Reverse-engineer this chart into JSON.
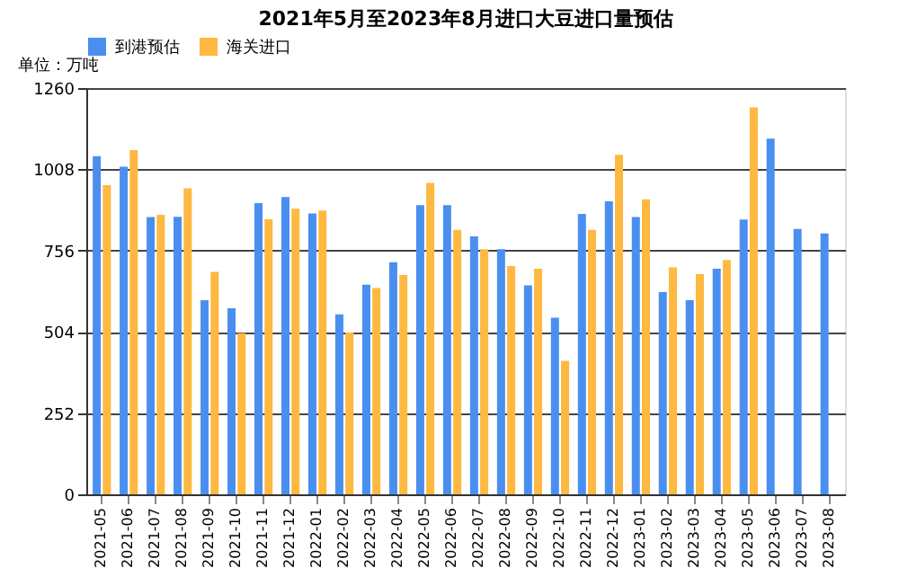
{
  "chart_data": {
    "type": "bar",
    "title": "2021年5月至2023年8月进口大豆进口量预估",
    "ylabel": "单位：万吨",
    "categories": [
      "2021-05",
      "2021-06",
      "2021-07",
      "2021-08",
      "2021-09",
      "2021-10",
      "2021-11",
      "2021-12",
      "2022-01",
      "2022-02",
      "2022-03",
      "2022-04",
      "2022-05",
      "2022-06",
      "2022-07",
      "2022-08",
      "2022-09",
      "2022-10",
      "2022-11",
      "2022-12",
      "2023-01",
      "2023-02",
      "2023-03",
      "2023-04",
      "2023-05",
      "2023-06",
      "2023-07",
      "2023-08"
    ],
    "series": [
      {
        "name": "到港预估",
        "color": "#4a8ff0",
        "values": [
          1049,
          1016,
          860,
          861,
          602,
          577,
          903,
          922,
          871,
          558,
          650,
          720,
          897,
          897,
          800,
          760,
          648,
          548,
          870,
          909,
          860,
          627,
          602,
          700,
          852,
          1103,
          823,
          809
        ]
      },
      {
        "name": "海关进口",
        "color": "#ffb840",
        "values": [
          959,
          1068,
          867,
          949,
          690,
          500,
          853,
          886,
          880,
          502,
          640,
          680,
          966,
          820,
          760,
          708,
          700,
          414,
          820,
          1053,
          915,
          704,
          683,
          727,
          1200,
          null,
          null,
          null
        ]
      }
    ],
    "ylim": [
      0,
      1260
    ],
    "yticks": [
      0,
      252,
      504,
      756,
      1008,
      1260
    ],
    "grid": "y",
    "legend": "top"
  }
}
